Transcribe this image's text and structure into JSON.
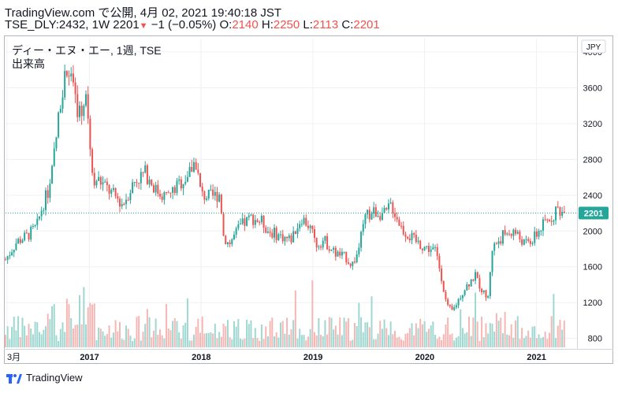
{
  "header": {
    "line1": "TradingView.com で公開, 4月 02, 2021 19:40:18 JST",
    "symbol": "TSE_DLY:2432, 1W",
    "last": "2201",
    "change": "−1 (−0.05%)",
    "o_label": "O:",
    "o_value": "2140",
    "h_label": "H:",
    "h_value": "2250",
    "l_label": "L:",
    "l_value": "2113",
    "c_label": "C:",
    "c_value": "2201"
  },
  "footer": {
    "brand": "TradingView"
  },
  "chart_data": {
    "type": "candlestick",
    "title": "ディー・エヌ・エー, 1週, TSE",
    "subtitle": "出来高",
    "currency": "JPY",
    "last_price_label": "2201",
    "last_price": 2201,
    "ylim": [
      700,
      4150
    ],
    "yticks": [
      800,
      1200,
      1600,
      2000,
      2400,
      2800,
      3200,
      3600,
      4000
    ],
    "x_ticks": [
      {
        "label": "3月",
        "t": 0.0
      },
      {
        "label": "2017",
        "t": 0.75
      },
      {
        "label": "2018",
        "t": 1.75
      },
      {
        "label": "2019",
        "t": 2.75
      },
      {
        "label": "2020",
        "t": 3.75
      },
      {
        "label": "2021",
        "t": 4.75
      }
    ],
    "colors": {
      "up": "#26a69a",
      "down": "#ef5350",
      "vol_up": "#9fd7d1",
      "vol_down": "#f5b7b5",
      "last_line": "#26a69a",
      "grid": "#eef0f3"
    },
    "price_path": [
      [
        0.0,
        1680
      ],
      [
        0.1,
        1880
      ],
      [
        0.2,
        1950
      ],
      [
        0.28,
        2050
      ],
      [
        0.33,
        2280
      ],
      [
        0.4,
        2500
      ],
      [
        0.45,
        3000
      ],
      [
        0.5,
        3550
      ],
      [
        0.55,
        3850
      ],
      [
        0.58,
        3700
      ],
      [
        0.63,
        3400
      ],
      [
        0.68,
        3300
      ],
      [
        0.72,
        3650
      ],
      [
        0.76,
        2900
      ],
      [
        0.78,
        2600
      ],
      [
        0.85,
        2550
      ],
      [
        0.95,
        2420
      ],
      [
        1.05,
        2300
      ],
      [
        1.15,
        2550
      ],
      [
        1.25,
        2650
      ],
      [
        1.35,
        2450
      ],
      [
        1.45,
        2380
      ],
      [
        1.55,
        2520
      ],
      [
        1.65,
        2650
      ],
      [
        1.7,
        2800
      ],
      [
        1.75,
        2400
      ],
      [
        1.85,
        2380
      ],
      [
        1.92,
        2420
      ],
      [
        1.95,
        1950
      ],
      [
        2.0,
        1850
      ],
      [
        2.1,
        2050
      ],
      [
        2.2,
        2150
      ],
      [
        2.3,
        2100
      ],
      [
        2.35,
        2000
      ],
      [
        2.45,
        1950
      ],
      [
        2.55,
        1900
      ],
      [
        2.65,
        2150
      ],
      [
        2.72,
        2050
      ],
      [
        2.78,
        1850
      ],
      [
        2.85,
        1900
      ],
      [
        2.95,
        1750
      ],
      [
        3.05,
        1700
      ],
      [
        3.1,
        1620
      ],
      [
        3.15,
        1750
      ],
      [
        3.22,
        2150
      ],
      [
        3.3,
        2220
      ],
      [
        3.4,
        2180
      ],
      [
        3.45,
        2300
      ],
      [
        3.55,
        2020
      ],
      [
        3.65,
        1900
      ],
      [
        3.75,
        1820
      ],
      [
        3.85,
        1780
      ],
      [
        3.9,
        1500
      ],
      [
        3.95,
        1150
      ],
      [
        4.0,
        1100
      ],
      [
        4.1,
        1350
      ],
      [
        4.2,
        1500
      ],
      [
        4.28,
        1300
      ],
      [
        4.32,
        1250
      ],
      [
        4.35,
        1800
      ],
      [
        4.45,
        1950
      ],
      [
        4.55,
        2000
      ],
      [
        4.65,
        1850
      ],
      [
        4.72,
        1900
      ],
      [
        4.8,
        2050
      ],
      [
        4.88,
        2150
      ],
      [
        4.94,
        2250
      ],
      [
        5.0,
        2201
      ]
    ]
  }
}
